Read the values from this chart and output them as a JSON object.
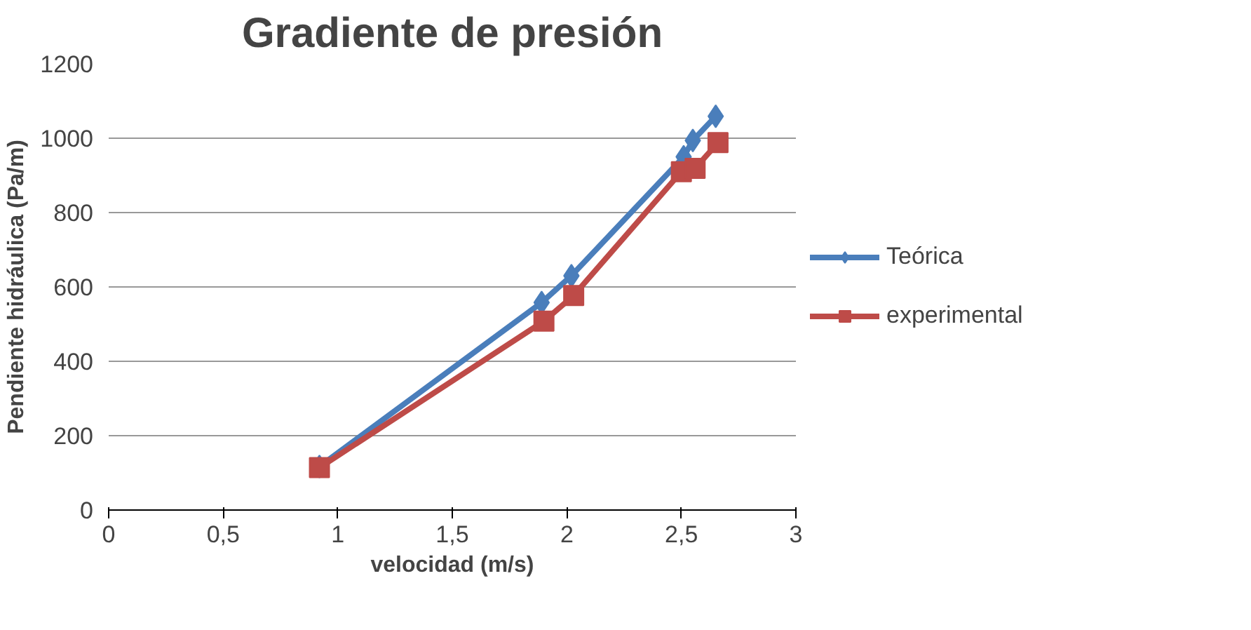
{
  "chart_data": {
    "type": "line",
    "title": "Gradiente de presión",
    "xlabel": "velocidad (m/s)",
    "ylabel": "Pendiente hidráulica (Pa/m)",
    "xlim": [
      0,
      3
    ],
    "xticks": [
      0,
      {
        "value": 0.5,
        "label": "0,5"
      },
      1,
      {
        "value": 1.5,
        "label": "1,5"
      },
      2,
      {
        "value": 2.5,
        "label": "2,5"
      },
      3
    ],
    "ylim": [
      0,
      1200
    ],
    "yticks": [
      0,
      200,
      400,
      600,
      800,
      1000,
      1200
    ],
    "grid": "y",
    "legend": "right",
    "series": [
      {
        "name": "Teórica",
        "color": "#4a7ebb",
        "marker": "diamond",
        "x": [
          0.92,
          1.89,
          2.02,
          2.51,
          2.55,
          2.65
        ],
        "values": [
          117,
          558,
          630,
          950,
          994,
          1059
        ]
      },
      {
        "name": "experimental",
        "color": "#be4b48",
        "marker": "square",
        "x": [
          0.92,
          1.9,
          2.03,
          2.5,
          2.56,
          2.66
        ],
        "values": [
          114,
          508,
          577,
          910,
          919,
          988
        ]
      }
    ]
  }
}
